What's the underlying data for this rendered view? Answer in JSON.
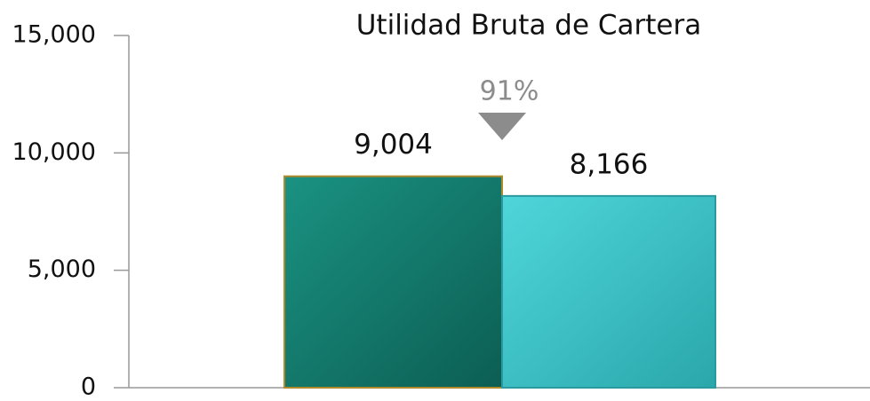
{
  "chart_data": {
    "type": "bar",
    "title": "Utilidad Bruta de Cartera",
    "categories": [
      null,
      null
    ],
    "values": [
      9004,
      8166
    ],
    "value_labels": [
      "9,004",
      "8,166"
    ],
    "colors": [
      "#127a6c",
      "#38c4c8"
    ],
    "annotation": "91%",
    "ylim": [
      0,
      15000
    ],
    "yticks": [
      0,
      {
        "value": 5000,
        "label": "5,000"
      },
      {
        "value": 10000,
        "label": "10,000"
      },
      {
        "value": 15000,
        "label": "15,000"
      }
    ],
    "grid": false
  }
}
